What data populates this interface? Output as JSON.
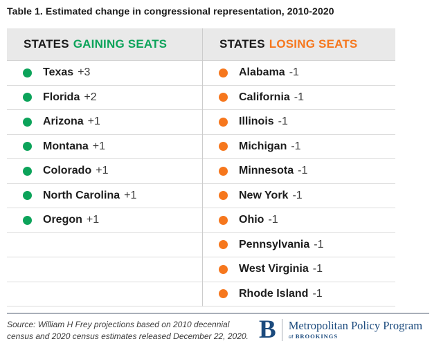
{
  "title": "Table 1. Estimated change in congressional representation, 2010-2020",
  "colors": {
    "green": "#0ca35a",
    "orange": "#f6771d",
    "navy": "#1b4a7d",
    "header_bg": "#e9e9e9",
    "row_border": "#dcdcdc"
  },
  "table": {
    "row_slots": 10,
    "columns": [
      {
        "id": "gaining",
        "header_prefix": "STATES",
        "header_highlight": "GAINING SEATS",
        "accent": "green",
        "rows": [
          {
            "state": "Texas",
            "change": "+3"
          },
          {
            "state": "Florida",
            "change": "+2"
          },
          {
            "state": "Arizona",
            "change": "+1"
          },
          {
            "state": "Montana",
            "change": "+1"
          },
          {
            "state": "Colorado",
            "change": "+1"
          },
          {
            "state": "North Carolina",
            "change": "+1"
          },
          {
            "state": "Oregon",
            "change": "+1"
          }
        ]
      },
      {
        "id": "losing",
        "header_prefix": "STATES",
        "header_highlight": "LOSING SEATS",
        "accent": "orange",
        "rows": [
          {
            "state": "Alabama",
            "change": "-1"
          },
          {
            "state": "California",
            "change": "-1"
          },
          {
            "state": "Illinois",
            "change": "-1"
          },
          {
            "state": "Michigan",
            "change": "-1"
          },
          {
            "state": "Minnesota",
            "change": "-1"
          },
          {
            "state": "New York",
            "change": "-1"
          },
          {
            "state": "Ohio",
            "change": "-1"
          },
          {
            "state": "Pennsylvania",
            "change": "-1"
          },
          {
            "state": "West Virginia",
            "change": "-1"
          },
          {
            "state": "Rhode Island",
            "change": "-1"
          }
        ]
      }
    ]
  },
  "footer": {
    "source_line1": "Source: William H Frey projections based on 2010 decennial",
    "source_line2": "census and 2020 census estimates released December 22, 2020.",
    "logo": {
      "initial": "B",
      "program": "Metropolitan Policy Program",
      "at": "at",
      "org": "BROOKINGS"
    }
  },
  "chart_data": {
    "type": "table",
    "title": "Table 1. Estimated change in congressional representation, 2010-2020",
    "columns": [
      "STATES GAINING SEATS",
      "STATES LOSING SEATS"
    ],
    "gaining_seats": [
      {
        "state": "Texas",
        "change": 3
      },
      {
        "state": "Florida",
        "change": 2
      },
      {
        "state": "Arizona",
        "change": 1
      },
      {
        "state": "Montana",
        "change": 1
      },
      {
        "state": "Colorado",
        "change": 1
      },
      {
        "state": "North Carolina",
        "change": 1
      },
      {
        "state": "Oregon",
        "change": 1
      }
    ],
    "losing_seats": [
      {
        "state": "Alabama",
        "change": -1
      },
      {
        "state": "California",
        "change": -1
      },
      {
        "state": "Illinois",
        "change": -1
      },
      {
        "state": "Michigan",
        "change": -1
      },
      {
        "state": "Minnesota",
        "change": -1
      },
      {
        "state": "New York",
        "change": -1
      },
      {
        "state": "Ohio",
        "change": -1
      },
      {
        "state": "Pennsylvania",
        "change": -1
      },
      {
        "state": "West Virginia",
        "change": -1
      },
      {
        "state": "Rhode Island",
        "change": -1
      }
    ],
    "source": "Source: William H Frey projections based on 2010 decennial census and 2020 census estimates released December 22, 2020."
  }
}
